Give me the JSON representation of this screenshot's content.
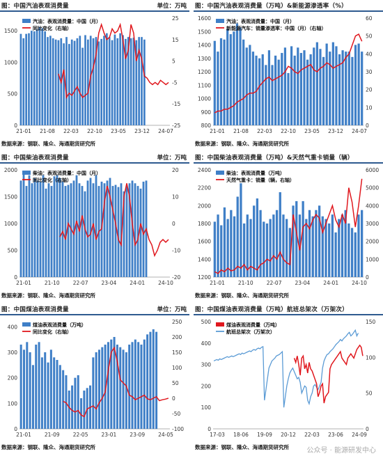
{
  "watermark": "公众号 · 能源研发中心",
  "panels": [
    {
      "id": "p1",
      "title": "图：中国汽油表观消费量",
      "unit": "单位：万吨",
      "source": "数据来源：钢联、隆众、海通期货研究所",
      "chart_data": {
        "type": "bar+line",
        "left_ticks": [
          "0",
          "500",
          "1000",
          "1500"
        ],
        "right_ticks": [
          "25",
          "15",
          "5",
          "-5",
          "-15",
          "-25"
        ],
        "x_ticks": [
          "21-01",
          "21-08",
          "22-03",
          "22-10",
          "23-05",
          "23-12",
          "24-07"
        ],
        "legend": [
          "汽油：表观消费量：中国（月）",
          "同比变化（右轴）"
        ],
        "ylim": [
          0,
          1700
        ],
        "y2lim": [
          -25,
          25
        ],
        "bars": [
          1450,
          1380,
          1450,
          1460,
          1500,
          1490,
          1520,
          1560,
          1540,
          1490,
          1400,
          1420,
          1380,
          1360,
          1350,
          1380,
          1300,
          1400,
          1290,
          1360,
          1340,
          1380,
          1420,
          1230,
          1430,
          1360,
          1420,
          1380,
          1400,
          1330,
          1370,
          1420,
          1460,
          1400,
          1350,
          1440,
          1380,
          1460,
          1430,
          1370,
          1400,
          1380,
          1390,
          1350,
          1400,
          1400,
          1360
        ],
        "line": {
          "start": 14,
          "values": [
            -1,
            -5,
            1,
            -12,
            -10,
            -11,
            -9,
            -7,
            -10,
            -12,
            -11,
            -10,
            -2,
            2,
            8,
            18,
            22,
            18,
            15,
            16,
            20,
            18,
            19,
            22,
            15,
            6,
            10,
            22,
            18,
            5,
            10,
            6,
            -2,
            -3,
            -5,
            -6,
            -5,
            -6,
            -4,
            -5,
            -6,
            -5
          ]
        }
      }
    },
    {
      "id": "p2",
      "title": "图：中国汽油表观消费量（万吨）&新能源渗透率（%）",
      "unit": "",
      "source": "数据来源：钢联、隆众、海通期货研究所",
      "chart_data": {
        "type": "bar+line",
        "left_ticks": [
          "800",
          "900",
          "1000",
          "1100",
          "1200",
          "1300",
          "1400",
          "1500",
          "1600"
        ],
        "right_ticks": [
          "0",
          "10",
          "20",
          "30",
          "40",
          "50",
          "60"
        ],
        "x_ticks": [
          "21-01",
          "21-08",
          "22-03",
          "22-10",
          "23-05",
          "23-12",
          "24-07"
        ],
        "legend": [
          "汽油：表观消费量：中国（月）",
          "新能源汽车：销量渗透率：中国（月）（右轴）"
        ],
        "ylim": [
          800,
          1600
        ],
        "y2lim": [
          0,
          60
        ],
        "bars": [
          1430,
          1350,
          1450,
          1440,
          1520,
          1480,
          1500,
          1560,
          1530,
          1440,
          1380,
          1400,
          1350,
          1320,
          1300,
          1330,
          1250,
          1360,
          1250,
          1320,
          1290,
          1340,
          1380,
          1190,
          1390,
          1320,
          1380,
          1340,
          1360,
          1290,
          1330,
          1380,
          1420,
          1370,
          1310,
          1410,
          1350,
          1420,
          1390,
          1330,
          1360,
          1350,
          1350,
          1310,
          1400,
          1410,
          1350
        ],
        "line": {
          "start": 0,
          "values": [
            7,
            8,
            8,
            9,
            9,
            10,
            11,
            13,
            14,
            15,
            17,
            18,
            18,
            19,
            22,
            24,
            26,
            27,
            25,
            26,
            27,
            28,
            30,
            33,
            32,
            30,
            29,
            31,
            32,
            33,
            34,
            31,
            30,
            32,
            33,
            35,
            34,
            32,
            33,
            34,
            35,
            38,
            40,
            45,
            50,
            51,
            47
          ]
        }
      }
    },
    {
      "id": "p3",
      "title": "图：中国柴油表观消费量",
      "unit": "单位：万吨",
      "source": "数据来源：钢联、隆众、海通期货研究所",
      "chart_data": {
        "type": "bar+line",
        "left_ticks": [
          "0",
          "500",
          "1000",
          "1500",
          "2000"
        ],
        "right_ticks": [
          "20",
          "10",
          "0",
          "-10",
          "-20"
        ],
        "x_ticks": [
          "21-01",
          "21-10",
          "22-07",
          "23-04",
          "24-01",
          "24-10"
        ],
        "legend": [
          "柴油：表观消费量：中国（月）",
          "同比变化（右轴）"
        ],
        "ylim": [
          0,
          2000
        ],
        "y2lim": [
          -20,
          20
        ],
        "bars": [
          1800,
          1950,
          1700,
          1900,
          1750,
          1850,
          1800,
          1780,
          1900,
          1650,
          1750,
          1700,
          1880,
          1900,
          1850,
          1780,
          1700,
          1720,
          1750,
          1800,
          1900,
          1750,
          1700,
          1600,
          1800,
          1850,
          1750,
          1900,
          1700,
          1780,
          1750,
          1800,
          1850,
          1700,
          1720,
          1680,
          1750,
          1600,
          1700,
          1750,
          1800,
          1750,
          1700,
          1650,
          1780,
          1800
        ],
        "line": {
          "start": 14,
          "values": [
            -5,
            -3,
            -6,
            0,
            -2,
            -4,
            1,
            -3,
            3,
            -2,
            -5,
            -4,
            0,
            -6,
            -3,
            -2,
            8,
            14,
            10,
            5,
            0,
            -6,
            -8,
            10,
            15,
            10,
            0,
            -8,
            -6,
            0,
            -4,
            -2,
            -6,
            -8,
            -12,
            -10,
            -7,
            -6,
            -7,
            -6
          ]
        }
      }
    },
    {
      "id": "p4",
      "title": "图：中国柴油表观消费量（万吨）&天然气重卡销量（辆）",
      "unit": "",
      "source": "数据来源：钢联、隆众、海通期货研究所",
      "chart_data": {
        "type": "bar+line",
        "left_ticks": [
          "1200",
          "1400",
          "1600",
          "1800",
          "2000",
          "2200",
          "2400"
        ],
        "right_ticks": [
          "0",
          "1000",
          "2000",
          "3000",
          "4000",
          "5000",
          "6000"
        ],
        "x_ticks": [
          "21-01",
          "21-10",
          "22-07",
          "23-04",
          "24-01",
          "24-10"
        ],
        "legend": [
          "柴油：表观消费量（万吨）",
          "天然气重卡：销量（辆，右轴）"
        ],
        "ylim": [
          1200,
          2400
        ],
        "y2lim": [
          0,
          6000
        ],
        "bars": [
          1820,
          1900,
          1780,
          1980,
          1850,
          1950,
          1880,
          2100,
          2250,
          1800,
          1900,
          1850,
          2000,
          2080,
          1950,
          1820,
          1800,
          1850,
          1900,
          1950,
          2150,
          1900,
          1850,
          1750,
          2000,
          2050,
          1900,
          2050,
          1850,
          1950,
          1880,
          1950,
          2000,
          1880,
          1850,
          1800,
          1900,
          1700,
          1850,
          1900,
          1950,
          1800,
          1750,
          1700,
          1900,
          1950
        ],
        "line": {
          "start": 0,
          "values": [
            300,
            200,
            400,
            300,
            500,
            350,
            400,
            600,
            500,
            700,
            400,
            600,
            500,
            400,
            700,
            800,
            1000,
            900,
            1200,
            1000,
            1400,
            1000,
            800,
            700,
            3500,
            2500,
            1500,
            2800,
            3000,
            2700,
            3200,
            3500,
            3300,
            2500,
            3000,
            3500,
            4000,
            3200,
            2800,
            3500,
            3000,
            5000,
            4200,
            2800,
            4000,
            5500
          ]
        }
      }
    },
    {
      "id": "p5",
      "title": "图：中国煤油表观消费量",
      "unit": "单位：万吨",
      "source": "数据来源：钢联、隆众、海通期货研究所",
      "chart_data": {
        "type": "bar+line",
        "left_ticks": [
          "0",
          "100",
          "200",
          "300",
          "400"
        ],
        "right_ticks": [
          "250",
          "200",
          "150",
          "100",
          "50",
          "0",
          "-50",
          "-100"
        ],
        "x_ticks": [
          "21-01",
          "21-09",
          "22-05",
          "23-01",
          "23-09",
          "24-05"
        ],
        "legend": [
          "煤油表观消费量（万吨）",
          "同比变化（右轴）"
        ],
        "ylim": [
          0,
          420
        ],
        "y2lim": [
          -100,
          250
        ],
        "bars": [
          330,
          310,
          340,
          300,
          250,
          330,
          340,
          280,
          300,
          260,
          310,
          280,
          270,
          250,
          230,
          210,
          150,
          170,
          200,
          210,
          120,
          150,
          160,
          170,
          280,
          300,
          310,
          320,
          330,
          340,
          350,
          360,
          330,
          320,
          310,
          300,
          330,
          340,
          350,
          340,
          330,
          350,
          370,
          380,
          390,
          380
        ],
        "line": {
          "start": 14,
          "values": [
            -10,
            -15,
            -30,
            -40,
            -45,
            -40,
            -55,
            -60,
            -35,
            -30,
            -25,
            -35,
            -15,
            0,
            20,
            90,
            150,
            165,
            120,
            60,
            50,
            40,
            10,
            5,
            -5,
            0,
            5,
            10,
            -2,
            -5,
            0,
            5,
            -8,
            -5,
            -3,
            0
          ]
        }
      }
    },
    {
      "id": "p6",
      "title": "图：中国煤油表观消费量（万吨）航班总架次（万架次）",
      "unit": "",
      "source": "数据来源：钢联、隆众、海通期货研究所",
      "chart_data": {
        "type": "line+line",
        "left_ticks": [
          "0",
          "100",
          "200",
          "300",
          "400",
          "500"
        ],
        "right_ticks": [
          "0",
          "50",
          "100",
          "150"
        ],
        "x_ticks": [
          "17-03",
          "18-06",
          "19-09",
          "20-12",
          "22-03",
          "23-06",
          "24-09"
        ],
        "legend": [
          "煤油表观消费量（万吨）",
          "航班总架次（万架次）"
        ],
        "ylim": [
          0,
          500
        ],
        "y2lim": [
          0,
          150
        ],
        "line": {
          "start": 54,
          "values": [
            330,
            310,
            340,
            300,
            250,
            330,
            340,
            280,
            300,
            260,
            310,
            280,
            270,
            250,
            230,
            210,
            150,
            170,
            200,
            210,
            120,
            150,
            160,
            170,
            280,
            300,
            310,
            320,
            330,
            340,
            350,
            360,
            330,
            320,
            310,
            300,
            330,
            340,
            350,
            340,
            330,
            350,
            370,
            380,
            390,
            380,
            340
          ]
        },
        "line2": {
          "start": 0,
          "values": [
            95,
            96,
            97,
            96,
            98,
            97,
            98,
            99,
            100,
            101,
            100,
            101,
            102,
            101,
            102,
            103,
            104,
            105,
            104,
            106,
            105,
            106,
            107,
            108,
            109,
            108,
            110,
            111,
            110,
            112,
            113,
            112,
            114,
            115,
            40,
            55,
            70,
            85,
            90,
            95,
            97,
            99,
            102,
            103,
            104,
            106,
            108,
            30,
            45,
            60,
            70,
            78,
            82,
            85,
            80,
            75,
            70,
            72,
            65,
            50,
            55,
            60,
            58,
            40,
            35,
            45,
            50,
            60,
            62,
            58,
            55,
            60,
            65,
            85,
            95,
            100,
            104,
            105,
            108,
            110,
            112,
            115,
            118,
            120,
            122,
            125,
            123,
            126,
            128,
            130,
            133,
            135,
            130,
            132,
            135,
            138,
            130,
            134
          ]
        }
      }
    }
  ]
}
